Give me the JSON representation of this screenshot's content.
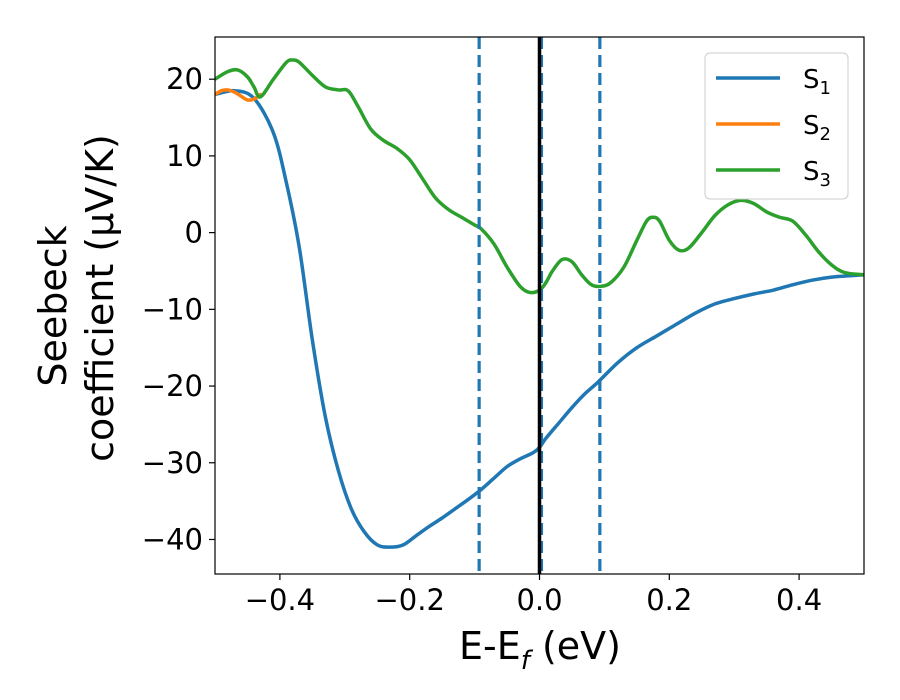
{
  "chart_data": {
    "type": "line",
    "title": "",
    "xlabel": "E-E",
    "xlabel_sub": "f",
    "xlabel_unit": " (eV)",
    "ylabel_line1": "Seebeck",
    "ylabel_line2": "coefficient  (μV/K)",
    "xlim": [
      -0.5,
      0.5
    ],
    "ylim": [
      -44.5,
      25.5
    ],
    "xticks": [
      -0.4,
      -0.2,
      0.0,
      0.2,
      0.4
    ],
    "xtick_labels": [
      "−0.4",
      "−0.2",
      "0.0",
      "0.2",
      "0.4"
    ],
    "yticks": [
      -40,
      -30,
      -20,
      -10,
      0,
      10,
      20
    ],
    "ytick_labels": [
      "−40",
      "−30",
      "−20",
      "−10",
      "0",
      "10",
      "20"
    ],
    "grid": false,
    "legend_position": "top-right",
    "vlines": [
      {
        "x": -0.093,
        "style": "dashed",
        "color": "#1f77b4"
      },
      {
        "x": 0.003,
        "style": "dashed",
        "color": "#1f77b4"
      },
      {
        "x": 0.093,
        "style": "dashed",
        "color": "#1f77b4"
      },
      {
        "x": 0.0,
        "style": "solid",
        "color": "#000000"
      }
    ],
    "series": [
      {
        "name": "S",
        "name_sub": "1",
        "color": "#1f77b4",
        "x": [
          -0.5,
          -0.47,
          -0.44,
          -0.41,
          -0.39,
          -0.37,
          -0.35,
          -0.33,
          -0.31,
          -0.29,
          -0.27,
          -0.25,
          -0.23,
          -0.21,
          -0.19,
          -0.17,
          -0.15,
          -0.13,
          -0.11,
          -0.09,
          -0.07,
          -0.05,
          -0.03,
          -0.01,
          0.0,
          0.01,
          0.03,
          0.05,
          0.07,
          0.09,
          0.12,
          0.15,
          0.18,
          0.21,
          0.24,
          0.27,
          0.3,
          0.33,
          0.36,
          0.39,
          0.42,
          0.45,
          0.48,
          0.5
        ],
        "y": [
          18,
          18.5,
          17.5,
          13,
          6.5,
          -2,
          -14,
          -24,
          -31,
          -36,
          -39,
          -40.7,
          -41,
          -40.7,
          -39.5,
          -38.3,
          -37.2,
          -36,
          -34.8,
          -33.5,
          -32,
          -30.5,
          -29.5,
          -28.7,
          -28,
          -26.8,
          -24.8,
          -22.8,
          -21,
          -19.5,
          -17,
          -15,
          -13.5,
          -12,
          -10.5,
          -9.3,
          -8.6,
          -8,
          -7.5,
          -6.8,
          -6.2,
          -5.8,
          -5.6,
          -5.5
        ]
      },
      {
        "name": "S",
        "name_sub": "2",
        "color": "#ff7f0e",
        "x": [
          -0.5,
          -0.49,
          -0.48,
          -0.47,
          -0.46,
          -0.45,
          -0.44,
          -0.43
        ],
        "y": [
          18,
          18.5,
          18.6,
          18.3,
          17.8,
          17.3,
          17.4,
          18
        ]
      },
      {
        "name": "S",
        "name_sub": "3",
        "color": "#2ca02c",
        "x": [
          -0.5,
          -0.48,
          -0.465,
          -0.45,
          -0.44,
          -0.43,
          -0.41,
          -0.39,
          -0.38,
          -0.37,
          -0.35,
          -0.33,
          -0.31,
          -0.295,
          -0.28,
          -0.26,
          -0.24,
          -0.22,
          -0.2,
          -0.18,
          -0.16,
          -0.14,
          -0.12,
          -0.1,
          -0.09,
          -0.07,
          -0.05,
          -0.03,
          -0.015,
          0.0,
          0.01,
          0.02,
          0.035,
          0.05,
          0.065,
          0.08,
          0.095,
          0.11,
          0.13,
          0.15,
          0.165,
          0.175,
          0.185,
          0.2,
          0.215,
          0.23,
          0.25,
          0.27,
          0.29,
          0.31,
          0.33,
          0.35,
          0.37,
          0.39,
          0.41,
          0.43,
          0.45,
          0.47,
          0.5
        ],
        "y": [
          20,
          21,
          21.2,
          20.3,
          19,
          17.7,
          20,
          22.2,
          22.5,
          22.2,
          20.5,
          19,
          18.6,
          18.5,
          16.5,
          13.5,
          12,
          11,
          9.5,
          7,
          4.5,
          3,
          2,
          1,
          0.5,
          -1.5,
          -4.5,
          -7,
          -7.8,
          -7.5,
          -6.5,
          -5,
          -3.5,
          -3.8,
          -5.5,
          -6.8,
          -7,
          -6.5,
          -4.5,
          -1,
          1.5,
          2,
          1.5,
          -1,
          -2.3,
          -2,
          0,
          2.2,
          3.6,
          4.2,
          3.8,
          2.7,
          2,
          1.5,
          -0.3,
          -2.5,
          -4.2,
          -5.2,
          -5.5
        ]
      }
    ]
  }
}
